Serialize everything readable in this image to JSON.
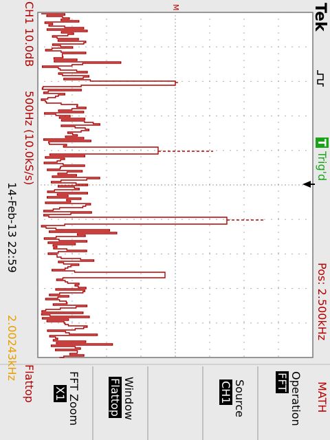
{
  "brand": "Tek",
  "trigger_status": "Trig'd",
  "trigger_badge": "T",
  "math_label": "MATH",
  "ch1_scale": "CH1 10.0dB",
  "freq_span": "500Hz (10.0kS/s)",
  "position": "Pos: 2.500kHz",
  "date_time": "14-Feb-13 22:59",
  "frequency_readout": "2.00243kHz",
  "window_indicator": "Flattop",
  "menu": {
    "operation": {
      "label": "Operation",
      "value": "FFT"
    },
    "source": {
      "label": "Source",
      "value": "CH1"
    },
    "window": {
      "label": "Window",
      "value": "Flattop"
    },
    "fft_zoom": {
      "label": "FFT Zoom",
      "value": "X1"
    }
  },
  "colors": {
    "trace": "#b40000",
    "grid": "#888888",
    "accent_green": "#1aa31a",
    "readout_orange": "#e8a000"
  }
}
